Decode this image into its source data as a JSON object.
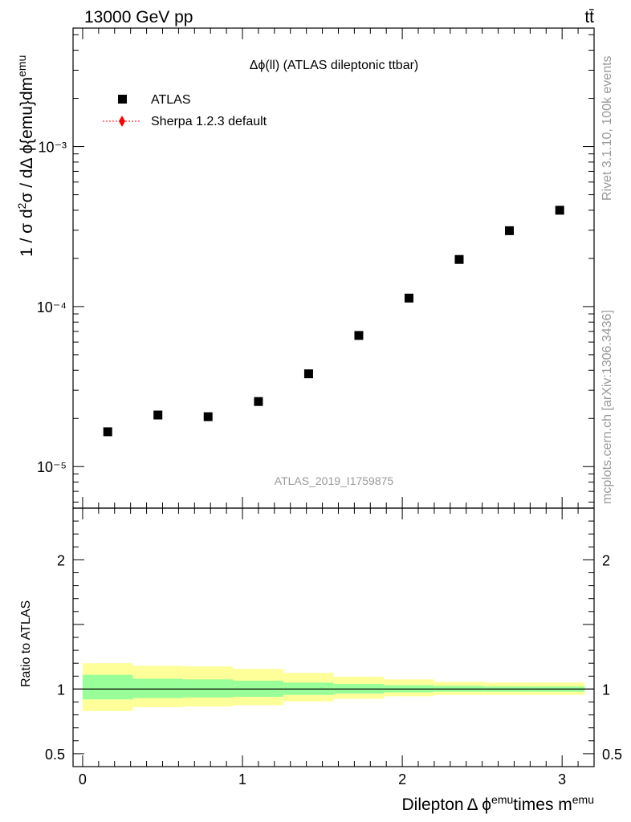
{
  "header": {
    "left": "13000 GeV pp",
    "right": "tt̄"
  },
  "side": {
    "rivet": "Rivet 3.1.10,  100k events",
    "mcplots": "mcplots.cern.ch [arXiv:1306.3436]"
  },
  "chart_data": [
    {
      "type": "scatter",
      "title": "Δϕ(ll) (ATLAS dileptonic ttbar)",
      "analysis_label": "ATLAS_2019_I1759875",
      "ylabel": "1 / σ  d²σ / dΔ ϕ{emu}dm^emu",
      "yscale": "log",
      "ylim": [
        5.5e-06,
        0.0055
      ],
      "xlim": [
        -0.06,
        3.2
      ],
      "y_ticks": [
        {
          "value": 1e-05,
          "label": "10⁻⁵"
        },
        {
          "value": 0.0001,
          "label": "10⁻⁴"
        },
        {
          "value": 0.001,
          "label": "10⁻³"
        }
      ],
      "legend": {
        "placement": "top-left",
        "entries": [
          {
            "name": "ATLAS",
            "marker": "square",
            "color": "#000000"
          },
          {
            "name": "Sherpa 1.2.3 default",
            "marker": "diamond-dotted-line",
            "color": "#ff0000"
          }
        ]
      },
      "series": [
        {
          "name": "ATLAS",
          "x": [
            0.157,
            0.471,
            0.785,
            1.1,
            1.414,
            1.728,
            2.042,
            2.356,
            2.67,
            2.985
          ],
          "values": [
            1.65e-05,
            2.1e-05,
            2.05e-05,
            2.55e-05,
            3.8e-05,
            6.6e-05,
            0.000113,
            0.000197,
            0.000298,
            0.0004
          ]
        }
      ]
    },
    {
      "type": "area",
      "ylabel": "Ratio to ATLAS",
      "xlabel_parts": [
        "Dilepton",
        "Δ ϕ",
        "emu",
        "times m",
        "emu"
      ],
      "xlim": [
        -0.06,
        3.2
      ],
      "ylim": [
        0.4,
        2.4
      ],
      "x_ticks": [
        {
          "value": 0,
          "label": "0"
        },
        {
          "value": 1,
          "label": "1"
        },
        {
          "value": 2,
          "label": "2"
        },
        {
          "value": 3,
          "label": "3"
        }
      ],
      "y_ticks": [
        {
          "value": 0.5,
          "label": "0.5"
        },
        {
          "value": 1,
          "label": "1"
        },
        {
          "value": 2,
          "label": "2"
        }
      ],
      "band_colors": {
        "outer": "#ffff99",
        "inner": "#99ff99",
        "line": "#000000"
      },
      "bands": [
        {
          "x0": 0.0,
          "x1": 0.314,
          "outer": [
            0.83,
            1.2
          ],
          "inner": [
            0.92,
            1.11
          ]
        },
        {
          "x0": 0.314,
          "x1": 0.628,
          "outer": [
            0.86,
            1.18
          ],
          "inner": [
            0.93,
            1.08
          ]
        },
        {
          "x0": 0.628,
          "x1": 0.942,
          "outer": [
            0.865,
            1.175
          ],
          "inner": [
            0.935,
            1.075
          ]
        },
        {
          "x0": 0.942,
          "x1": 1.257,
          "outer": [
            0.875,
            1.155
          ],
          "inner": [
            0.94,
            1.065
          ]
        },
        {
          "x0": 1.257,
          "x1": 1.571,
          "outer": [
            0.905,
            1.125
          ],
          "inner": [
            0.955,
            1.05
          ]
        },
        {
          "x0": 1.571,
          "x1": 1.885,
          "outer": [
            0.925,
            1.095
          ],
          "inner": [
            0.965,
            1.04
          ]
        },
        {
          "x0": 1.885,
          "x1": 2.199,
          "outer": [
            0.945,
            1.075
          ],
          "inner": [
            0.975,
            1.03
          ]
        },
        {
          "x0": 2.199,
          "x1": 2.513,
          "outer": [
            0.955,
            1.055
          ],
          "inner": [
            0.98,
            1.025
          ]
        },
        {
          "x0": 2.513,
          "x1": 2.827,
          "outer": [
            0.955,
            1.05
          ],
          "inner": [
            0.98,
            1.02
          ]
        },
        {
          "x0": 2.827,
          "x1": 3.142,
          "outer": [
            0.955,
            1.05
          ],
          "inner": [
            0.98,
            1.02
          ]
        }
      ]
    }
  ]
}
